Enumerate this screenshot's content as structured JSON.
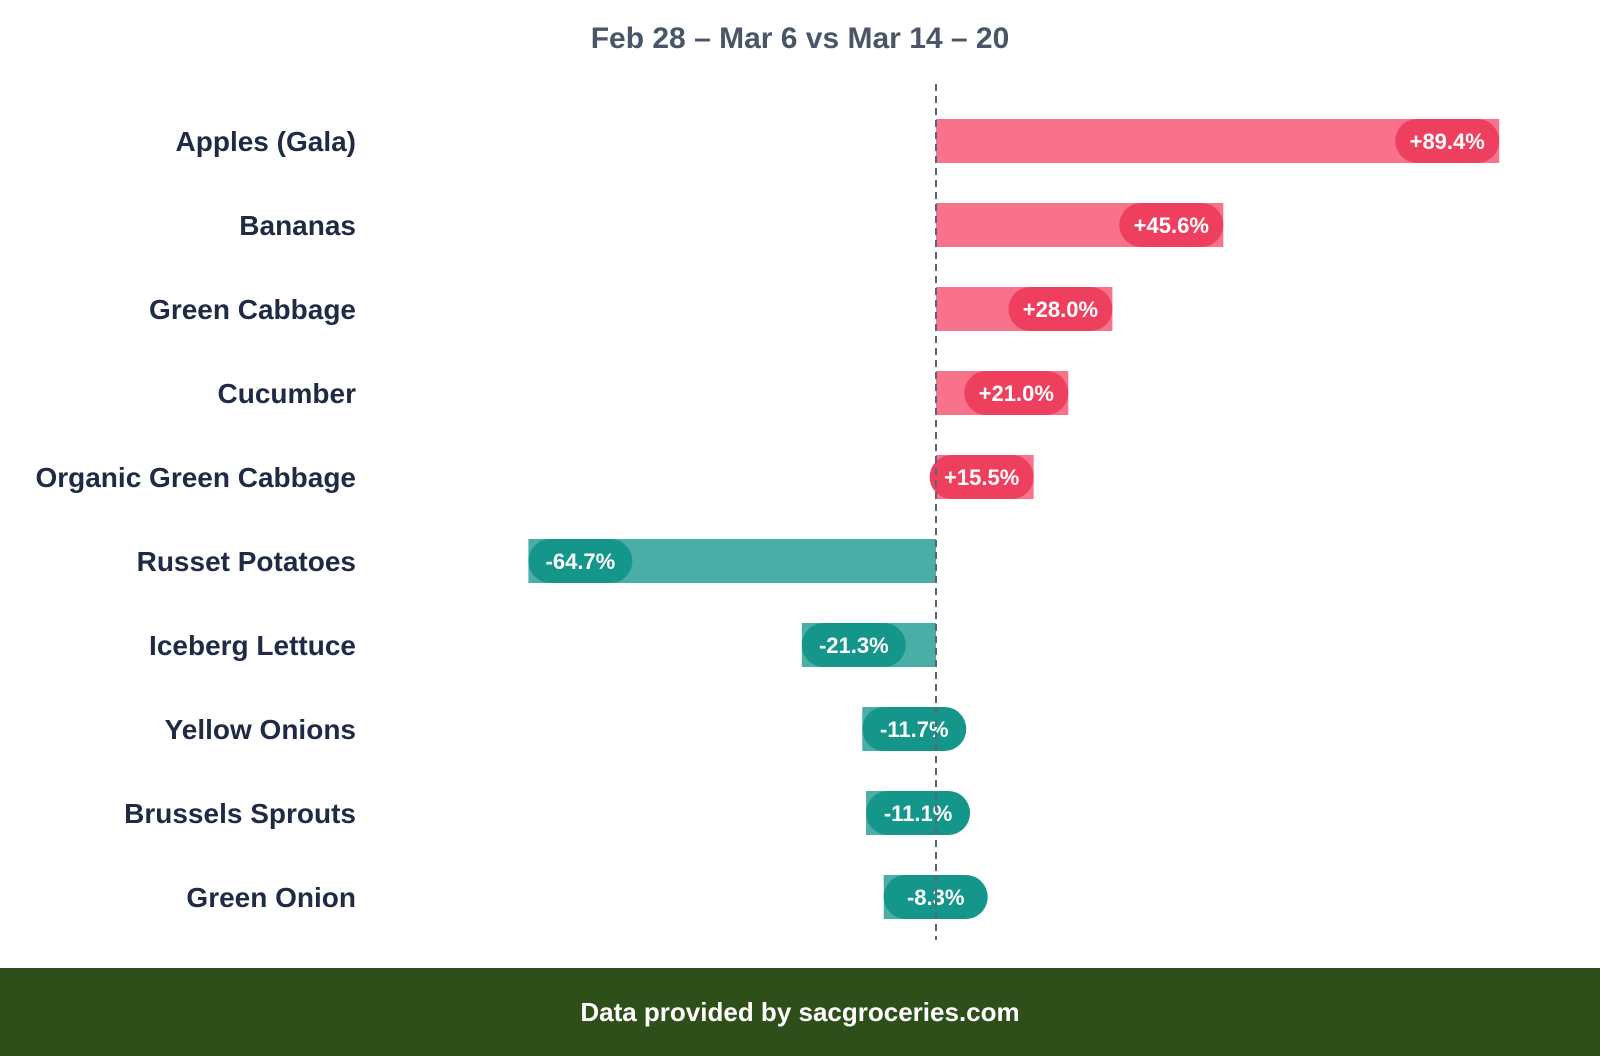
{
  "chart_data": {
    "type": "bar",
    "orientation": "horizontal",
    "title": "Feb 28 – Mar 6 vs Mar 14 – 20",
    "categories": [
      "Apples (Gala)",
      "Bananas",
      "Green Cabbage",
      "Cucumber",
      "Organic Green Cabbage",
      "Russet Potatoes",
      "Iceberg Lettuce",
      "Yellow Onions",
      "Brussels Sprouts",
      "Green Onion"
    ],
    "values": [
      89.4,
      45.6,
      28.0,
      21.0,
      15.5,
      -64.7,
      -21.3,
      -11.7,
      -11.1,
      -8.3
    ],
    "data_labels": [
      "+89.4%",
      "+45.6%",
      "+28.0%",
      "+21.0%",
      "+15.5%",
      "-64.7%",
      "-21.3%",
      "-11.7%",
      "-11.1%",
      "-8.3%"
    ],
    "unit": "%",
    "xlim": [
      -100,
      100
    ],
    "zero_line": "dashed",
    "grid": false,
    "colors": {
      "positive_bar": "#f7728a",
      "positive_label": "#ef3f5e",
      "negative_bar": "#4baea6",
      "negative_label": "#14968a",
      "category_text": "#1f2a44",
      "zero_line": "#5a6577"
    }
  },
  "footer": {
    "text": "Data provided by sacgroceries.com",
    "background": "#2f4f1a"
  }
}
